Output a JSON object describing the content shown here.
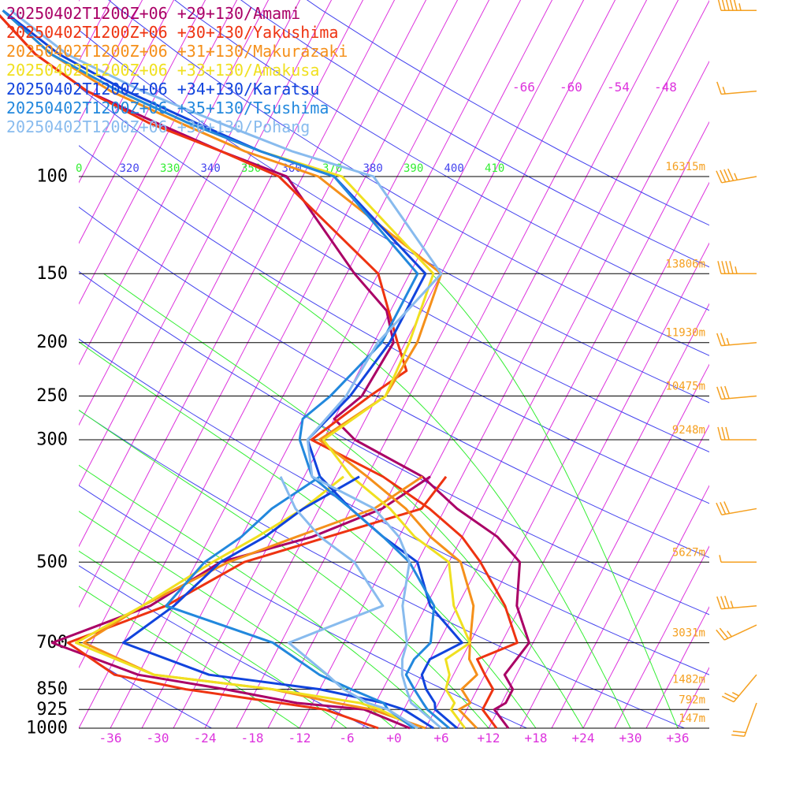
{
  "chart_data": {
    "type": "line",
    "title": "",
    "xlabel": "",
    "ylabel": "",
    "y_scale": "log",
    "xlim": [
      -40,
      40
    ],
    "ylim": [
      1000,
      100
    ],
    "legend_placement": "top-left",
    "colors": {
      "background": "#ffffff",
      "isobar": "#000000",
      "isotherm": "#dd33dd",
      "dry_adiabat": "#4444ee",
      "moist_adiabat": "#33ee33",
      "height_label": "#f5a020",
      "wind_barb": "#f5a020"
    },
    "pressure_levels": [
      {
        "p": 100,
        "label": "100",
        "height": "16315m"
      },
      {
        "p": 150,
        "label": "150",
        "height": "13806m"
      },
      {
        "p": 200,
        "label": "200",
        "height": "11930m"
      },
      {
        "p": 250,
        "label": "250",
        "height": "10475m"
      },
      {
        "p": 300,
        "label": "300",
        "height": "9248m"
      },
      {
        "p": 500,
        "label": "500",
        "height": "5627m"
      },
      {
        "p": 700,
        "label": "700",
        "height": "3031m"
      },
      {
        "p": 850,
        "label": "850",
        "height": "1482m"
      },
      {
        "p": 925,
        "label": "925",
        "height": "792m"
      },
      {
        "p": 1000,
        "label": "1000",
        "height": "147m"
      }
    ],
    "x_ticks": [
      {
        "v": -36,
        "label": "-36"
      },
      {
        "v": -30,
        "label": "-30"
      },
      {
        "v": -24,
        "label": "-24"
      },
      {
        "v": -18,
        "label": "-18"
      },
      {
        "v": -12,
        "label": "-12"
      },
      {
        "v": -6,
        "label": "-6"
      },
      {
        "v": 0,
        "label": "+0"
      },
      {
        "v": 6,
        "label": "+6"
      },
      {
        "v": 12,
        "label": "+12"
      },
      {
        "v": 18,
        "label": "+18"
      },
      {
        "v": 24,
        "label": "+24"
      },
      {
        "v": 30,
        "label": "+30"
      },
      {
        "v": 36,
        "label": "+36"
      }
    ],
    "upper_temp_labels": [
      "-66",
      "-60",
      "-54",
      "-48"
    ],
    "theta_labels": [
      {
        "text": "0",
        "color": "#33ee33"
      },
      {
        "text": "320",
        "color": "#4444ee"
      },
      {
        "text": "330",
        "color": "#33ee33"
      },
      {
        "text": "340",
        "color": "#4444ee"
      },
      {
        "text": "350",
        "color": "#33ee33"
      },
      {
        "text": "360",
        "color": "#4444ee"
      },
      {
        "text": "370",
        "color": "#33ee33"
      },
      {
        "text": "380",
        "color": "#4444ee"
      },
      {
        "text": "390",
        "color": "#33ee33"
      },
      {
        "text": "400",
        "color": "#4444ee"
      },
      {
        "text": "410",
        "color": "#33ee33"
      }
    ],
    "series": [
      {
        "name": "20250402T1200Z+06 +29+130/Amami",
        "color": "#aa0066",
        "temperature": [
          [
            1000,
            14.5
          ],
          [
            925,
            11.5
          ],
          [
            900,
            12.5
          ],
          [
            850,
            12.5
          ],
          [
            800,
            10.5
          ],
          [
            700,
            11.5
          ],
          [
            600,
            7.5
          ],
          [
            500,
            5
          ],
          [
            450,
            0.5
          ],
          [
            400,
            -6.5
          ],
          [
            350,
            -13
          ],
          [
            300,
            -24
          ],
          [
            275,
            -28
          ],
          [
            250,
            -26
          ],
          [
            200,
            -25.5
          ],
          [
            175,
            -28.5
          ],
          [
            150,
            -35
          ],
          [
            100,
            -50
          ],
          [
            90,
            -60
          ],
          [
            80,
            -70
          ],
          [
            70,
            -81
          ],
          [
            60,
            -90
          ],
          [
            50,
            -98
          ]
        ],
        "dewpoint": [
          [
            1000,
            2
          ],
          [
            925,
            -5
          ],
          [
            900,
            -14
          ],
          [
            850,
            -24
          ],
          [
            800,
            -36
          ],
          [
            700,
            -49
          ],
          [
            600,
            -39
          ],
          [
            500,
            -33
          ],
          [
            450,
            -23
          ],
          [
            400,
            -16
          ],
          [
            350,
            -12
          ]
        ]
      },
      {
        "name": "20250402T1200Z+06 +30+130/Yakushima",
        "color": "#ee3311",
        "temperature": [
          [
            1000,
            13
          ],
          [
            925,
            10
          ],
          [
            900,
            10
          ],
          [
            850,
            10
          ],
          [
            800,
            8
          ],
          [
            750,
            6
          ],
          [
            700,
            10
          ],
          [
            600,
            6
          ],
          [
            500,
            0
          ],
          [
            450,
            -4
          ],
          [
            400,
            -10
          ],
          [
            350,
            -18
          ],
          [
            300,
            -29.5
          ],
          [
            250,
            -25
          ],
          [
            225,
            -22
          ],
          [
            200,
            -25
          ],
          [
            150,
            -32
          ],
          [
            100,
            -51
          ],
          [
            90,
            -60
          ],
          [
            80,
            -71
          ],
          [
            70,
            -81
          ],
          [
            60,
            -90
          ],
          [
            50,
            -98
          ]
        ],
        "dewpoint": [
          [
            1000,
            -2
          ],
          [
            925,
            -10
          ],
          [
            850,
            -29
          ],
          [
            800,
            -39
          ],
          [
            700,
            -47
          ],
          [
            600,
            -37
          ],
          [
            500,
            -30
          ],
          [
            450,
            -21
          ],
          [
            400,
            -11
          ],
          [
            350,
            -10
          ]
        ]
      },
      {
        "name": "20250402T1200Z+06 +31+130/Makurazaki",
        "color": "#f5901a",
        "temperature": [
          [
            1000,
            10.5
          ],
          [
            925,
            7
          ],
          [
            900,
            8
          ],
          [
            850,
            6
          ],
          [
            800,
            7
          ],
          [
            750,
            5
          ],
          [
            700,
            4
          ],
          [
            600,
            2
          ],
          [
            500,
            -2.5
          ],
          [
            450,
            -8
          ],
          [
            400,
            -13
          ],
          [
            350,
            -20
          ],
          [
            300,
            -28.5
          ],
          [
            250,
            -23
          ],
          [
            200,
            -22.5
          ],
          [
            150,
            -24
          ],
          [
            100,
            -46
          ],
          [
            90,
            -57
          ],
          [
            80,
            -67
          ],
          [
            70,
            -78
          ],
          [
            60,
            -88
          ],
          [
            50,
            -97
          ]
        ],
        "dewpoint": [
          [
            1000,
            4
          ],
          [
            925,
            -4
          ],
          [
            900,
            -9
          ],
          [
            850,
            -18
          ],
          [
            800,
            -34
          ],
          [
            700,
            -45
          ],
          [
            600,
            -40
          ],
          [
            500,
            -32
          ],
          [
            450,
            -25
          ],
          [
            400,
            -17
          ],
          [
            350,
            -13
          ]
        ]
      },
      {
        "name": "20250402T1200Z+06 +33+130/Amakusa",
        "color": "#f0e020",
        "temperature": [
          [
            1000,
            9
          ],
          [
            925,
            6
          ],
          [
            900,
            6
          ],
          [
            850,
            4
          ],
          [
            800,
            3.5
          ],
          [
            750,
            2
          ],
          [
            700,
            4
          ],
          [
            600,
            -0.5
          ],
          [
            500,
            -4
          ],
          [
            450,
            -10
          ],
          [
            400,
            -15
          ],
          [
            350,
            -22
          ],
          [
            300,
            -28
          ],
          [
            250,
            -23
          ],
          [
            200,
            -23.5
          ],
          [
            150,
            -25
          ],
          [
            100,
            -43
          ],
          [
            90,
            -55
          ],
          [
            80,
            -66
          ],
          [
            70,
            -77
          ],
          [
            60,
            -88
          ],
          [
            50,
            -97
          ]
        ],
        "dewpoint": [
          [
            1000,
            3
          ],
          [
            925,
            -3
          ],
          [
            900,
            -6
          ],
          [
            850,
            -18
          ],
          [
            800,
            -34
          ],
          [
            700,
            -46
          ],
          [
            600,
            -40
          ],
          [
            500,
            -34
          ],
          [
            450,
            -30
          ],
          [
            400,
            -26
          ],
          [
            350,
            -23
          ]
        ]
      },
      {
        "name": "20250402T1200Z+06 +34+130/Karatsu",
        "color": "#1144dd",
        "temperature": [
          [
            1000,
            8
          ],
          [
            925,
            4
          ],
          [
            900,
            3.5
          ],
          [
            850,
            1.5
          ],
          [
            800,
            0
          ],
          [
            750,
            0
          ],
          [
            700,
            3
          ],
          [
            600,
            -3.5
          ],
          [
            500,
            -8
          ],
          [
            450,
            -14
          ],
          [
            400,
            -20
          ],
          [
            350,
            -26
          ],
          [
            300,
            -30
          ],
          [
            250,
            -27.5
          ],
          [
            200,
            -26
          ],
          [
            150,
            -26
          ],
          [
            100,
            -44
          ],
          [
            90,
            -55
          ],
          [
            80,
            -65
          ],
          [
            70,
            -76
          ],
          [
            60,
            -87
          ],
          [
            50,
            -97
          ]
        ],
        "dewpoint": [
          [
            1000,
            5
          ],
          [
            925,
            0
          ],
          [
            900,
            -3
          ],
          [
            850,
            -12
          ],
          [
            800,
            -27
          ],
          [
            700,
            -40
          ],
          [
            600,
            -36
          ],
          [
            500,
            -33
          ],
          [
            450,
            -29
          ],
          [
            400,
            -26
          ],
          [
            350,
            -21
          ]
        ]
      },
      {
        "name": "20250402T1200Z+06 +35+130/Tsushima",
        "color": "#2288dd",
        "temperature": [
          [
            1000,
            7
          ],
          [
            925,
            3
          ],
          [
            900,
            2
          ],
          [
            850,
            0
          ],
          [
            800,
            -2
          ],
          [
            750,
            -2
          ],
          [
            700,
            -1
          ],
          [
            600,
            -3
          ],
          [
            500,
            -9
          ],
          [
            450,
            -14
          ],
          [
            400,
            -20
          ],
          [
            350,
            -27
          ],
          [
            300,
            -31
          ],
          [
            275,
            -32
          ],
          [
            250,
            -30
          ],
          [
            200,
            -27
          ],
          [
            150,
            -27
          ],
          [
            100,
            -44
          ],
          [
            90,
            -55
          ],
          [
            80,
            -66
          ],
          [
            70,
            -77
          ],
          [
            60,
            -88
          ],
          [
            50,
            -97
          ]
        ],
        "dewpoint": [
          [
            1000,
            2.5
          ],
          [
            925,
            -2
          ],
          [
            900,
            -3
          ],
          [
            850,
            -8
          ],
          [
            800,
            -13
          ],
          [
            700,
            -21
          ],
          [
            600,
            -37
          ],
          [
            500,
            -35
          ],
          [
            450,
            -32
          ],
          [
            400,
            -30
          ],
          [
            350,
            -26
          ]
        ]
      },
      {
        "name": "20250402T1200Z+06 +36+130/Pohang",
        "color": "#88bbee",
        "temperature": [
          [
            1000,
            6
          ],
          [
            925,
            2
          ],
          [
            900,
            0.5
          ],
          [
            850,
            -1
          ],
          [
            800,
            -2.5
          ],
          [
            750,
            -3.5
          ],
          [
            700,
            -4
          ],
          [
            600,
            -7
          ],
          [
            500,
            -9
          ],
          [
            450,
            -12
          ],
          [
            400,
            -17
          ],
          [
            350,
            -27
          ],
          [
            300,
            -30
          ],
          [
            250,
            -28
          ],
          [
            200,
            -27.5
          ],
          [
            150,
            -24
          ],
          [
            100,
            -39
          ],
          [
            90,
            -51
          ],
          [
            80,
            -62
          ],
          [
            70,
            -74
          ],
          [
            60,
            -86
          ],
          [
            50,
            -96
          ]
        ],
        "dewpoint": [
          [
            1000,
            3
          ],
          [
            925,
            -2
          ],
          [
            900,
            -5
          ],
          [
            850,
            -9
          ],
          [
            800,
            -12
          ],
          [
            700,
            -19
          ],
          [
            600,
            -9.5
          ],
          [
            500,
            -16
          ],
          [
            450,
            -22
          ],
          [
            400,
            -27
          ],
          [
            350,
            -31
          ]
        ]
      }
    ],
    "wind_barbs": [
      {
        "p": 50,
        "direction_deg": 270,
        "speed_kt": 55
      },
      {
        "p": 70,
        "direction_deg": 265,
        "speed_kt": 15
      },
      {
        "p": 100,
        "direction_deg": 260,
        "speed_kt": 45
      },
      {
        "p": 150,
        "direction_deg": 270,
        "speed_kt": 45
      },
      {
        "p": 200,
        "direction_deg": 265,
        "speed_kt": 25
      },
      {
        "p": 250,
        "direction_deg": 265,
        "speed_kt": 30
      },
      {
        "p": 300,
        "direction_deg": 270,
        "speed_kt": 30
      },
      {
        "p": 400,
        "direction_deg": 260,
        "speed_kt": 30
      },
      {
        "p": 500,
        "direction_deg": 270,
        "speed_kt": 5
      },
      {
        "p": 600,
        "direction_deg": 265,
        "speed_kt": 35
      },
      {
        "p": 650,
        "direction_deg": 245,
        "speed_kt": 25
      },
      {
        "p": 800,
        "direction_deg": 220,
        "speed_kt": 25
      },
      {
        "p": 900,
        "direction_deg": 200,
        "speed_kt": 20
      }
    ]
  }
}
